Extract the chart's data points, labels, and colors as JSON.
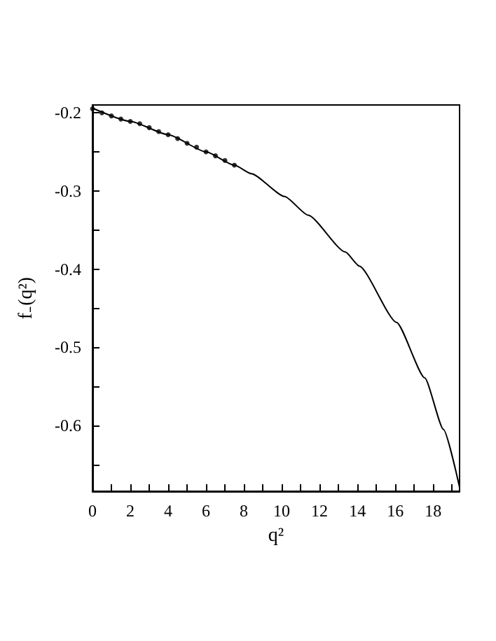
{
  "chart_data": {
    "type": "line",
    "xlabel": "q²",
    "ylabel": "f₋(q²)",
    "xlim": [
      0,
      19.4
    ],
    "ylim": [
      -0.684,
      -0.19
    ],
    "xticks": [
      0,
      {
        "value": 1,
        "label": null
      },
      2,
      {
        "value": 3,
        "label": null
      },
      4,
      {
        "value": 5,
        "label": null
      },
      6,
      {
        "value": 7,
        "label": null
      },
      8,
      {
        "value": 9,
        "label": null
      },
      10,
      {
        "value": 11,
        "label": null
      },
      12,
      {
        "value": 13,
        "label": null
      },
      14,
      {
        "value": 15,
        "label": null
      },
      16,
      {
        "value": 17,
        "label": null
      },
      18,
      {
        "value": 19,
        "label": null
      }
    ],
    "yticks": [
      {
        "value": -0.65,
        "label": null
      },
      -0.6,
      {
        "value": -0.55,
        "label": null
      },
      -0.5,
      {
        "value": -0.45,
        "label": null
      },
      -0.4,
      {
        "value": -0.35,
        "label": null
      },
      -0.3,
      {
        "value": -0.25,
        "label": null
      },
      -0.2
    ],
    "grid": false,
    "series": [
      {
        "color": "#000000",
        "marker": "none",
        "line_style": "solid",
        "x": [
          0,
          2,
          4,
          6,
          7.5,
          8.4,
          10.15,
          11.4,
          13.36,
          14.1,
          16.07,
          17.56,
          18.55,
          19.4
        ],
        "values": [
          -0.194,
          -0.211,
          -0.228,
          -0.25,
          -0.267,
          -0.278,
          -0.307,
          -0.331,
          -0.378,
          -0.396,
          -0.468,
          -0.539,
          -0.605,
          -0.679
        ]
      },
      {
        "type": "scatter",
        "color": "#000000",
        "marker": "circle",
        "x": [
          0,
          0.5,
          1,
          1.5,
          2,
          2.5,
          3,
          3.5,
          4,
          4.5,
          5,
          5.5,
          6,
          6.5,
          7,
          7.5
        ],
        "values": [
          -0.195,
          -0.2,
          -0.204,
          -0.208,
          -0.211,
          -0.214,
          -0.219,
          -0.224,
          -0.228,
          -0.233,
          -0.239,
          -0.244,
          -0.25,
          -0.255,
          -0.261,
          -0.267
        ]
      }
    ]
  }
}
